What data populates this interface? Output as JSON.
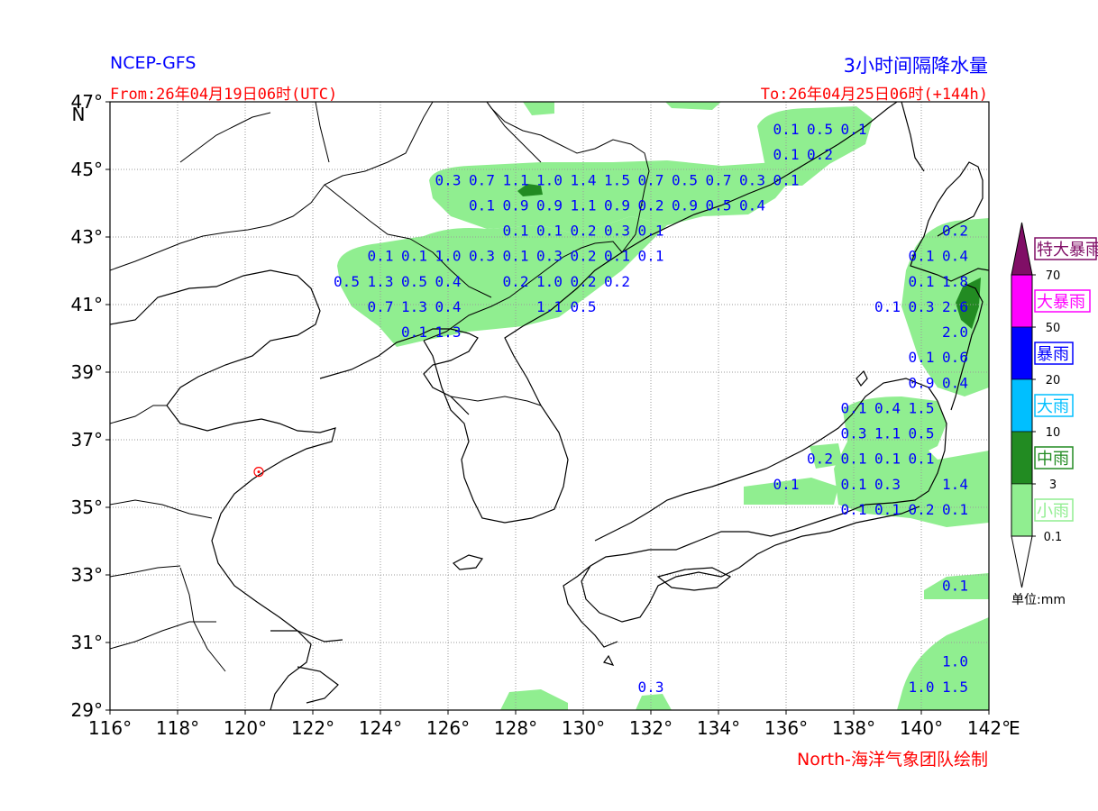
{
  "header": {
    "model": "NCEP-GFS",
    "product": "3小时间隔降水量",
    "from": "From:26年04月19日06时(UTC)",
    "to": "To:26年04月25日06时(+144h)",
    "credit": "North-海洋气象团队绘制"
  },
  "axes": {
    "x_ticks": [
      "116°",
      "118°",
      "120°",
      "122°",
      "124°",
      "126°",
      "128°",
      "130°",
      "132°",
      "134°",
      "136°",
      "138°",
      "140°",
      "142°"
    ],
    "x_unit": "E",
    "y_ticks": [
      "47°",
      "45°",
      "43°",
      "41°",
      "39°",
      "37°",
      "35°",
      "33°",
      "31°",
      "29°"
    ],
    "y_unit": "N",
    "x_range": [
      116,
      142
    ],
    "y_range": [
      29,
      47
    ]
  },
  "legend": {
    "unit": "单位:mm",
    "categories": [
      {
        "label": "特大暴雨",
        "color": "#800e66"
      },
      {
        "label": "大暴雨",
        "color": "#ff00ff"
      },
      {
        "label": "暴雨",
        "color": "#0000ff"
      },
      {
        "label": "大雨",
        "color": "#00bfff"
      },
      {
        "label": "中雨",
        "color": "#228b22"
      },
      {
        "label": "小雨",
        "color": "#90ee90"
      }
    ],
    "thresholds": [
      "70",
      "50",
      "20",
      "10",
      "3",
      "0.1"
    ]
  },
  "city_marker": {
    "name": "qingdao-marker",
    "lon": 120.4,
    "lat": 36.05
  },
  "precip_labels": [
    {
      "t": "0.1",
      "lon": 136.0,
      "lat": 46.2
    },
    {
      "t": "0.5",
      "lon": 137.0,
      "lat": 46.2
    },
    {
      "t": "0.1",
      "lon": 138.0,
      "lat": 46.2
    },
    {
      "t": "0.1",
      "lon": 136.0,
      "lat": 45.45
    },
    {
      "t": "0.2",
      "lon": 137.0,
      "lat": 45.45
    },
    {
      "t": "0.3",
      "lon": 126.0,
      "lat": 44.7
    },
    {
      "t": "0.7",
      "lon": 127.0,
      "lat": 44.7
    },
    {
      "t": "1.1",
      "lon": 128.0,
      "lat": 44.7
    },
    {
      "t": "1.0",
      "lon": 129.0,
      "lat": 44.7
    },
    {
      "t": "1.4",
      "lon": 130.0,
      "lat": 44.7
    },
    {
      "t": "1.5",
      "lon": 131.0,
      "lat": 44.7
    },
    {
      "t": "0.7",
      "lon": 132.0,
      "lat": 44.7
    },
    {
      "t": "0.5",
      "lon": 133.0,
      "lat": 44.7
    },
    {
      "t": "0.7",
      "lon": 134.0,
      "lat": 44.7
    },
    {
      "t": "0.3",
      "lon": 135.0,
      "lat": 44.7
    },
    {
      "t": "0.1",
      "lon": 136.0,
      "lat": 44.7
    },
    {
      "t": "0.1",
      "lon": 127.0,
      "lat": 43.95
    },
    {
      "t": "0.9",
      "lon": 128.0,
      "lat": 43.95
    },
    {
      "t": "0.9",
      "lon": 129.0,
      "lat": 43.95
    },
    {
      "t": "1.1",
      "lon": 130.0,
      "lat": 43.95
    },
    {
      "t": "0.9",
      "lon": 131.0,
      "lat": 43.95
    },
    {
      "t": "0.2",
      "lon": 132.0,
      "lat": 43.95
    },
    {
      "t": "0.9",
      "lon": 133.0,
      "lat": 43.95
    },
    {
      "t": "0.5",
      "lon": 134.0,
      "lat": 43.95
    },
    {
      "t": "0.4",
      "lon": 135.0,
      "lat": 43.95
    },
    {
      "t": "0.1",
      "lon": 128.0,
      "lat": 43.2
    },
    {
      "t": "0.1",
      "lon": 129.0,
      "lat": 43.2
    },
    {
      "t": "0.2",
      "lon": 130.0,
      "lat": 43.2
    },
    {
      "t": "0.3",
      "lon": 131.0,
      "lat": 43.2
    },
    {
      "t": "0.1",
      "lon": 132.0,
      "lat": 43.2
    },
    {
      "t": "0.2",
      "lon": 141.0,
      "lat": 43.2
    },
    {
      "t": "0.1",
      "lon": 124.0,
      "lat": 42.45
    },
    {
      "t": "0.1",
      "lon": 125.0,
      "lat": 42.45
    },
    {
      "t": "1.0",
      "lon": 126.0,
      "lat": 42.45
    },
    {
      "t": "0.3",
      "lon": 127.0,
      "lat": 42.45
    },
    {
      "t": "0.1",
      "lon": 128.0,
      "lat": 42.45
    },
    {
      "t": "0.3",
      "lon": 129.0,
      "lat": 42.45
    },
    {
      "t": "0.2",
      "lon": 130.0,
      "lat": 42.45
    },
    {
      "t": "0.1",
      "lon": 131.0,
      "lat": 42.45
    },
    {
      "t": "0.1",
      "lon": 132.0,
      "lat": 42.45
    },
    {
      "t": "0.1",
      "lon": 140.0,
      "lat": 42.45
    },
    {
      "t": "0.4",
      "lon": 141.0,
      "lat": 42.45
    },
    {
      "t": "0.5",
      "lon": 123.0,
      "lat": 41.7
    },
    {
      "t": "1.3",
      "lon": 124.0,
      "lat": 41.7
    },
    {
      "t": "0.5",
      "lon": 125.0,
      "lat": 41.7
    },
    {
      "t": "0.4",
      "lon": 126.0,
      "lat": 41.7
    },
    {
      "t": "0.2",
      "lon": 128.0,
      "lat": 41.7
    },
    {
      "t": "1.0",
      "lon": 129.0,
      "lat": 41.7
    },
    {
      "t": "0.2",
      "lon": 130.0,
      "lat": 41.7
    },
    {
      "t": "0.2",
      "lon": 131.0,
      "lat": 41.7
    },
    {
      "t": "0.1",
      "lon": 140.0,
      "lat": 41.7
    },
    {
      "t": "1.8",
      "lon": 141.0,
      "lat": 41.7
    },
    {
      "t": "0.7",
      "lon": 124.0,
      "lat": 40.95
    },
    {
      "t": "1.3",
      "lon": 125.0,
      "lat": 40.95
    },
    {
      "t": "0.4",
      "lon": 126.0,
      "lat": 40.95
    },
    {
      "t": "1.1",
      "lon": 129.0,
      "lat": 40.95
    },
    {
      "t": "0.5",
      "lon": 130.0,
      "lat": 40.95
    },
    {
      "t": "0.1",
      "lon": 139.0,
      "lat": 40.95
    },
    {
      "t": "0.3",
      "lon": 140.0,
      "lat": 40.95
    },
    {
      "t": "2.6",
      "lon": 141.0,
      "lat": 40.95
    },
    {
      "t": "0.1",
      "lon": 125.0,
      "lat": 40.2
    },
    {
      "t": "1.3",
      "lon": 126.0,
      "lat": 40.2
    },
    {
      "t": "2.0",
      "lon": 141.0,
      "lat": 40.2
    },
    {
      "t": "0.1",
      "lon": 140.0,
      "lat": 39.45
    },
    {
      "t": "0.6",
      "lon": 141.0,
      "lat": 39.45
    },
    {
      "t": "0.9",
      "lon": 140.0,
      "lat": 38.7
    },
    {
      "t": "0.4",
      "lon": 141.0,
      "lat": 38.7
    },
    {
      "t": "0.1",
      "lon": 138.0,
      "lat": 37.95
    },
    {
      "t": "0.4",
      "lon": 139.0,
      "lat": 37.95
    },
    {
      "t": "1.5",
      "lon": 140.0,
      "lat": 37.95
    },
    {
      "t": "0.3",
      "lon": 138.0,
      "lat": 37.2
    },
    {
      "t": "1.1",
      "lon": 139.0,
      "lat": 37.2
    },
    {
      "t": "0.5",
      "lon": 140.0,
      "lat": 37.2
    },
    {
      "t": "0.2",
      "lon": 137.0,
      "lat": 36.45
    },
    {
      "t": "0.1",
      "lon": 138.0,
      "lat": 36.45
    },
    {
      "t": "0.1",
      "lon": 139.0,
      "lat": 36.45
    },
    {
      "t": "0.1",
      "lon": 140.0,
      "lat": 36.45
    },
    {
      "t": "0.1",
      "lon": 136.0,
      "lat": 35.7
    },
    {
      "t": "0.1",
      "lon": 138.0,
      "lat": 35.7
    },
    {
      "t": "0.3",
      "lon": 139.0,
      "lat": 35.7
    },
    {
      "t": "1.4",
      "lon": 141.0,
      "lat": 35.7
    },
    {
      "t": "0.1",
      "lon": 138.0,
      "lat": 34.95
    },
    {
      "t": "0.1",
      "lon": 139.0,
      "lat": 34.95
    },
    {
      "t": "0.2",
      "lon": 140.0,
      "lat": 34.95
    },
    {
      "t": "0.1",
      "lon": 141.0,
      "lat": 34.95
    },
    {
      "t": "0.1",
      "lon": 141.0,
      "lat": 32.7
    },
    {
      "t": "1.0",
      "lon": 141.0,
      "lat": 30.45
    },
    {
      "t": "0.3",
      "lon": 132.0,
      "lat": 29.7
    },
    {
      "t": "1.0",
      "lon": 140.0,
      "lat": 29.7
    },
    {
      "t": "1.5",
      "lon": 141.0,
      "lat": 29.7
    }
  ]
}
